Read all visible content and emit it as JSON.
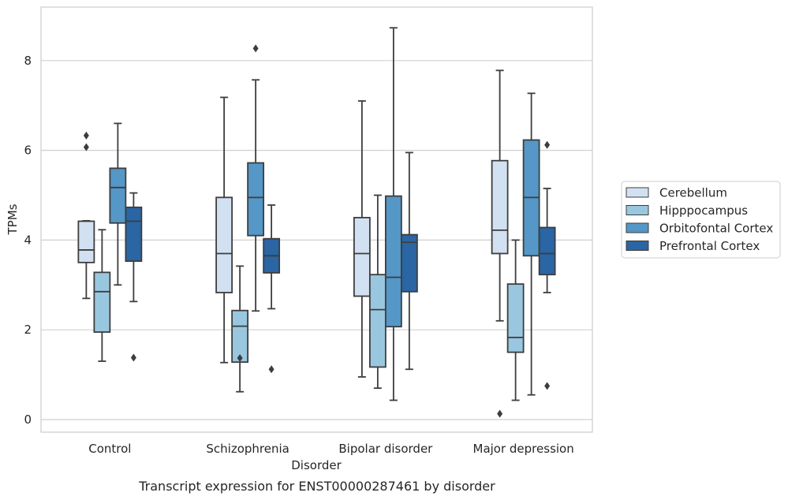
{
  "caption": "Transcript expression for ENST00000287461 by disorder",
  "chart_data": {
    "type": "box",
    "xlabel": "Disorder",
    "ylabel": "TPMs",
    "ylim": [
      -0.3,
      9.2
    ],
    "yticks": [
      0,
      2,
      4,
      6,
      8
    ],
    "grid": "horizontal",
    "legend_position": "right",
    "categories": [
      "Control",
      "Schizophrenia",
      "Bipolar disorder",
      "Major depression"
    ],
    "series": [
      {
        "name": "Cerebellum",
        "color": "#d2e1f1",
        "boxes": [
          {
            "whislo": 2.7,
            "q1": 3.5,
            "med": 3.78,
            "q3": 4.42,
            "whishi": 4.43,
            "fliers": [
              6.07,
              6.33
            ]
          },
          {
            "whislo": 1.27,
            "q1": 2.83,
            "med": 3.7,
            "q3": 4.95,
            "whishi": 7.18,
            "fliers": []
          },
          {
            "whislo": 0.95,
            "q1": 2.75,
            "med": 3.7,
            "q3": 4.5,
            "whishi": 7.1,
            "fliers": []
          },
          {
            "whislo": 2.2,
            "q1": 3.7,
            "med": 4.22,
            "q3": 5.77,
            "whishi": 7.78,
            "fliers": [
              0.13
            ]
          }
        ]
      },
      {
        "name": "Hipppocampus",
        "color": "#9ac7e0",
        "boxes": [
          {
            "whislo": 1.3,
            "q1": 1.95,
            "med": 2.85,
            "q3": 3.28,
            "whishi": 4.23,
            "fliers": []
          },
          {
            "whislo": 0.62,
            "q1": 1.28,
            "med": 2.08,
            "q3": 2.43,
            "whishi": 3.42,
            "fliers": [
              1.37
            ]
          },
          {
            "whislo": 0.7,
            "q1": 1.17,
            "med": 2.45,
            "q3": 3.23,
            "whishi": 5.0,
            "fliers": []
          },
          {
            "whislo": 0.43,
            "q1": 1.5,
            "med": 1.83,
            "q3": 3.02,
            "whishi": 4.0,
            "fliers": []
          }
        ]
      },
      {
        "name": "Orbitofontal Cortex",
        "color": "#5597c6",
        "boxes": [
          {
            "whislo": 3.0,
            "q1": 4.38,
            "med": 5.17,
            "q3": 5.6,
            "whishi": 6.6,
            "fliers": []
          },
          {
            "whislo": 2.42,
            "q1": 4.1,
            "med": 4.95,
            "q3": 5.72,
            "whishi": 7.57,
            "fliers": [
              8.27
            ]
          },
          {
            "whislo": 0.43,
            "q1": 2.07,
            "med": 3.17,
            "q3": 4.98,
            "whishi": 8.73,
            "fliers": []
          },
          {
            "whislo": 0.55,
            "q1": 3.65,
            "med": 4.95,
            "q3": 6.23,
            "whishi": 7.27,
            "fliers": []
          }
        ]
      },
      {
        "name": "Prefrontal Cortex",
        "color": "#2a65a4",
        "boxes": [
          {
            "whislo": 2.63,
            "q1": 3.53,
            "med": 4.42,
            "q3": 4.73,
            "whishi": 5.05,
            "fliers": [
              1.38
            ]
          },
          {
            "whislo": 2.47,
            "q1": 3.27,
            "med": 3.65,
            "q3": 4.03,
            "whishi": 4.78,
            "fliers": [
              1.12
            ]
          },
          {
            "whislo": 1.12,
            "q1": 2.85,
            "med": 3.95,
            "q3": 4.12,
            "whishi": 5.95,
            "fliers": []
          },
          {
            "whislo": 2.83,
            "q1": 3.23,
            "med": 3.7,
            "q3": 4.28,
            "whishi": 5.15,
            "fliers": [
              6.12,
              0.75
            ]
          }
        ]
      }
    ]
  }
}
